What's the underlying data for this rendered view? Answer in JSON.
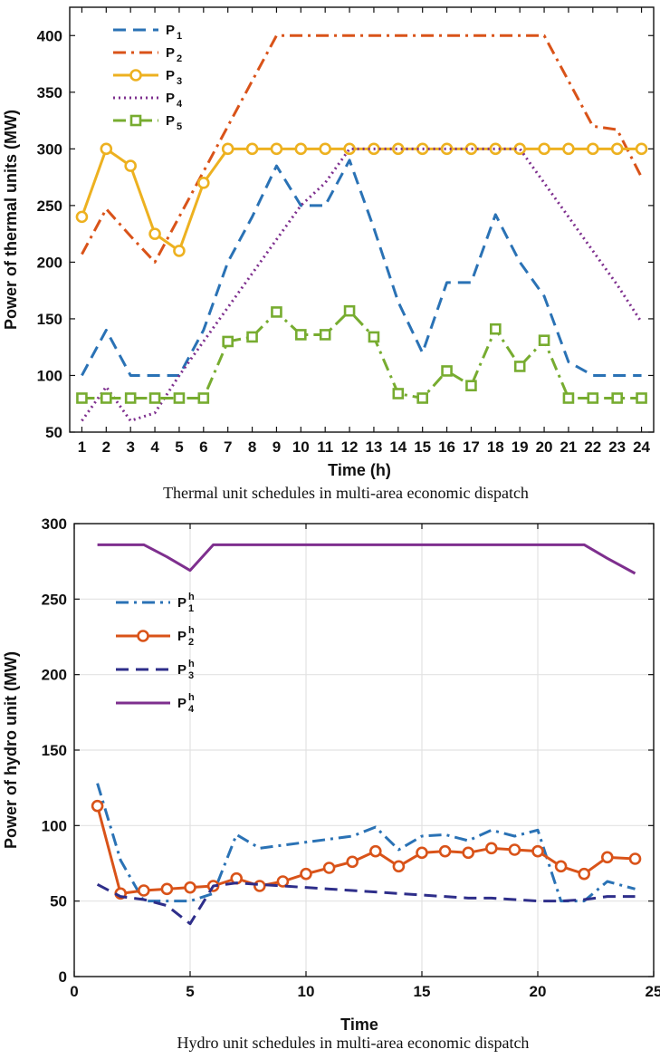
{
  "chart_data": [
    {
      "type": "line",
      "caption": "Thermal unit schedules in multi-area economic dispatch",
      "xlabel": "Time (h)",
      "ylabel": "Power of thermal units (MW)",
      "xlim": [
        0.5,
        24.5
      ],
      "ylim": [
        50,
        425
      ],
      "xticks": [
        1,
        2,
        3,
        4,
        5,
        6,
        7,
        8,
        9,
        10,
        11,
        12,
        13,
        14,
        15,
        16,
        17,
        18,
        19,
        20,
        21,
        22,
        23,
        24
      ],
      "yticks": [
        50,
        100,
        150,
        200,
        250,
        300,
        350,
        400
      ],
      "grid": false,
      "legend_position": "top-left",
      "x": [
        1,
        2,
        3,
        4,
        5,
        6,
        7,
        8,
        9,
        10,
        11,
        12,
        13,
        14,
        15,
        16,
        17,
        18,
        19,
        20,
        21,
        22,
        23,
        24
      ],
      "series": [
        {
          "name": "P",
          "sub": "1",
          "color": "#2a72b5",
          "style": "dashed",
          "marker": "none",
          "values": [
            100,
            140,
            100,
            100,
            100,
            140,
            200,
            240,
            285,
            250,
            250,
            290,
            230,
            165,
            120,
            182,
            182,
            242,
            200,
            170,
            112,
            100,
            100,
            100
          ]
        },
        {
          "name": "P",
          "sub": "2",
          "color": "#d95319",
          "style": "dashdot",
          "marker": "none",
          "values": [
            207,
            247,
            223,
            200,
            240,
            280,
            320,
            360,
            400,
            400,
            400,
            400,
            400,
            400,
            400,
            400,
            400,
            400,
            400,
            400,
            360,
            320,
            317,
            275
          ]
        },
        {
          "name": "P",
          "sub": "3",
          "color": "#edb120",
          "style": "solid",
          "marker": "circle",
          "values": [
            240,
            300,
            285,
            225,
            210,
            270,
            300,
            300,
            300,
            300,
            300,
            300,
            300,
            300,
            300,
            300,
            300,
            300,
            300,
            300,
            300,
            300,
            300,
            300
          ]
        },
        {
          "name": "P",
          "sub": "4",
          "color": "#7e2f8e",
          "style": "dotted",
          "marker": "none",
          "values": [
            60,
            90,
            60,
            67,
            100,
            130,
            160,
            190,
            220,
            250,
            270,
            300,
            300,
            300,
            300,
            300,
            300,
            300,
            300,
            270,
            240,
            210,
            180,
            147
          ]
        },
        {
          "name": "P",
          "sub": "5",
          "color": "#77ac30",
          "style": "dashdot",
          "marker": "square",
          "values": [
            80,
            80,
            80,
            80,
            80,
            80,
            130,
            134,
            156,
            136,
            136,
            157,
            134,
            84,
            80,
            104,
            91,
            141,
            108,
            131,
            80,
            80,
            80,
            80
          ]
        }
      ]
    },
    {
      "type": "line",
      "caption": "Hydro unit schedules in multi-area economic dispatch",
      "xlabel": "Time",
      "ylabel": "Power of hydro unit (MW)",
      "xlim": [
        0,
        25
      ],
      "ylim": [
        0,
        300
      ],
      "xticks": [
        0,
        5,
        10,
        15,
        20,
        25
      ],
      "yticks": [
        0,
        50,
        100,
        150,
        200,
        250,
        300
      ],
      "grid": true,
      "legend_position": "top-left",
      "x": [
        1,
        2,
        3,
        4,
        5,
        6,
        7,
        8,
        9,
        10,
        11,
        12,
        13,
        14,
        15,
        16,
        17,
        18,
        19,
        20,
        21,
        22,
        23,
        24.2
      ],
      "series": [
        {
          "name": "P",
          "sup": "h",
          "sub": "1",
          "color": "#2a72b5",
          "style": "dashdot",
          "marker": "none",
          "values": [
            128,
            77,
            50,
            50,
            50,
            55,
            94,
            85,
            87,
            89,
            91,
            93,
            99,
            84,
            93,
            94,
            90,
            97,
            93,
            97,
            50,
            50,
            63,
            58
          ]
        },
        {
          "name": "P",
          "sup": "h",
          "sub": "2",
          "color": "#d95319",
          "style": "solid",
          "marker": "circle",
          "values": [
            113,
            55,
            57,
            58,
            59,
            60,
            65,
            60,
            63,
            68,
            72,
            76,
            83,
            73,
            82,
            83,
            82,
            85,
            84,
            83,
            73,
            68,
            79,
            78
          ]
        },
        {
          "name": "P",
          "sup": "h",
          "sub": "3",
          "color": "#2e2e8a",
          "style": "dashed",
          "marker": "none",
          "values": [
            61,
            53,
            51,
            47,
            35,
            60,
            62,
            61,
            60,
            59,
            58,
            57,
            56,
            55,
            54,
            53,
            52,
            52,
            51,
            50,
            50,
            51,
            53,
            53
          ]
        },
        {
          "name": "P",
          "sup": "h",
          "sub": "4",
          "color": "#7e2f8e",
          "style": "solid",
          "marker": "none",
          "values": [
            286,
            286,
            286,
            278,
            269,
            286,
            286,
            286,
            286,
            286,
            286,
            286,
            286,
            286,
            286,
            286,
            286,
            286,
            286,
            286,
            286,
            286,
            277,
            267
          ]
        }
      ]
    }
  ]
}
